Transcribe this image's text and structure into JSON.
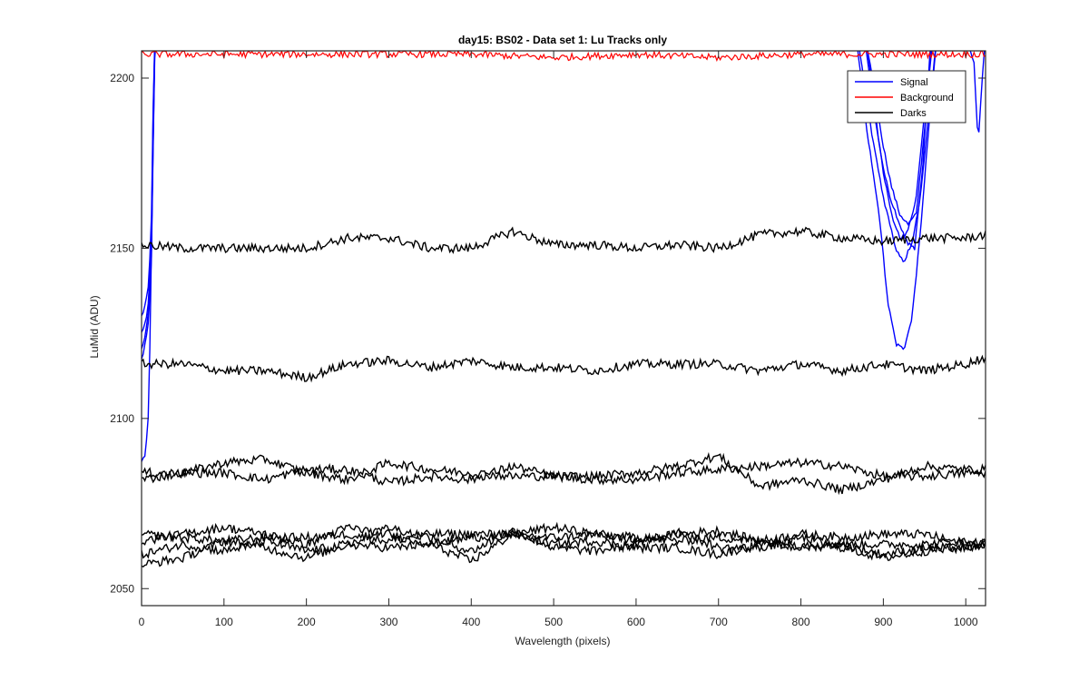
{
  "chart_data": {
    "type": "line",
    "title": "day15: BS02 - Data set 1: Lu Tracks only",
    "xlabel": "Wavelength (pixels)",
    "ylabel": "LuMid (ADU)",
    "xlim": [
      0,
      1024
    ],
    "ylim": [
      2045,
      2208
    ],
    "xticks": [
      0,
      100,
      200,
      300,
      400,
      500,
      600,
      700,
      800,
      900,
      1000
    ],
    "yticks": [
      2050,
      2100,
      2150,
      2200
    ],
    "grid": false,
    "legend": {
      "placement": "top-right",
      "entries": [
        "Signal",
        "Background",
        "Darks"
      ]
    },
    "colors": {
      "Signal": "#0000ff",
      "Background": "#ff0000",
      "Darks": "#000000"
    },
    "series": [
      {
        "name": "Signal",
        "note": "multiple overlapping traces; low near pixel 0, off-scale high from ~15 to ~870, dips between ~870 and ~960, off-scale again near 1000 with a dip at ~1015",
        "lines": [
          {
            "x": [
              0,
              3,
              6,
              9,
              12,
              14,
              16,
              18,
              880,
              890,
              900,
              910,
              920,
              930,
              940,
              950,
              960,
              1000,
              1010,
              1015,
              1020,
              1024
            ],
            "y": [
              2130,
              2132,
              2135,
              2140,
              2160,
              2190,
              2210,
              2212,
              2210,
              2195,
              2180,
              2168,
              2160,
              2157,
              2160,
              2185,
              2212,
              2212,
              2205,
              2180,
              2200,
              2212
            ]
          },
          {
            "x": [
              0,
              3,
              6,
              9,
              12,
              14,
              16,
              18,
              880,
              890,
              900,
              910,
              920,
              930,
              940,
              950,
              960,
              1024
            ],
            "y": [
              2125,
              2127,
              2130,
              2135,
              2155,
              2185,
              2210,
              2212,
              2210,
              2190,
              2172,
              2160,
              2153,
              2155,
              2165,
              2190,
              2212,
              2212
            ]
          },
          {
            "x": [
              0,
              3,
              6,
              9,
              12,
              14,
              16,
              18,
              878,
              888,
              898,
              908,
              918,
              928,
              938,
              948,
              958,
              1024
            ],
            "y": [
              2120,
              2123,
              2127,
              2132,
              2150,
              2180,
              2208,
              2212,
              2210,
              2192,
              2176,
              2165,
              2158,
              2152,
              2150,
              2175,
              2212,
              2212
            ]
          },
          {
            "x": [
              0,
              3,
              6,
              9,
              12,
              14,
              16,
              18,
              870,
              885,
              900,
              915,
              925,
              935,
              945,
              955,
              965,
              1024
            ],
            "y": [
              2118,
              2120,
              2124,
              2130,
              2148,
              2178,
              2206,
              2212,
              2210,
              2185,
              2165,
              2150,
              2146,
              2152,
              2165,
              2190,
              2212,
              2212
            ]
          },
          {
            "x": [
              0,
              2,
              5,
              8,
              11,
              13,
              15,
              17,
              868,
              880,
              895,
              905,
              915,
              925,
              935,
              945,
              955,
              965,
              1024
            ],
            "y": [
              2087,
              2088,
              2090,
              2100,
              2130,
              2170,
              2205,
              2212,
              2210,
              2185,
              2160,
              2135,
              2122,
              2120,
              2130,
              2155,
              2185,
              2212,
              2212
            ]
          }
        ]
      },
      {
        "name": "Background",
        "note": "noisy red trace hugging the top edge of the plot",
        "x": [
          0,
          100,
          200,
          300,
          400,
          500,
          600,
          700,
          800,
          900,
          1000,
          1024
        ],
        "y": [
          2207,
          2207,
          2207,
          2207,
          2207,
          2206,
          2207,
          2206,
          2207,
          2207,
          2207,
          2207
        ]
      },
      {
        "name": "Darks",
        "note": "noisy black traces; smooth baselines with ~±1.5 ADU noise",
        "lines": [
          {
            "x": [
              0,
              50,
              100,
              150,
              200,
              250,
              300,
              350,
              400,
              450,
              500,
              550,
              600,
              650,
              700,
              750,
              800,
              850,
              900,
              950,
              1000,
              1024
            ],
            "y": [
              2151,
              2150,
              2150,
              2150,
              2150,
              2153,
              2153,
              2150,
              2150,
              2155,
              2151,
              2151,
              2150,
              2151,
              2150,
              2154,
              2155,
              2153,
              2152,
              2153,
              2153,
              2154
            ]
          },
          {
            "x": [
              0,
              50,
              100,
              150,
              200,
              250,
              300,
              350,
              400,
              450,
              500,
              550,
              600,
              650,
              700,
              750,
              800,
              850,
              900,
              950,
              1000,
              1024
            ],
            "y": [
              2116,
              2116,
              2114,
              2114,
              2112,
              2116,
              2117,
              2115,
              2117,
              2115,
              2115,
              2114,
              2116,
              2116,
              2116,
              2114,
              2116,
              2114,
              2116,
              2114,
              2116,
              2118
            ]
          },
          {
            "x": [
              0,
              50,
              100,
              150,
              200,
              250,
              300,
              350,
              400,
              450,
              500,
              550,
              600,
              650,
              700,
              750,
              800,
              850,
              900,
              950,
              1000,
              1024
            ],
            "y": [
              2084,
              2084,
              2087,
              2088,
              2084,
              2082,
              2087,
              2085,
              2084,
              2083,
              2083,
              2082,
              2082,
              2084,
              2085,
              2086,
              2087,
              2086,
              2083,
              2083,
              2084,
              2084
            ]
          },
          {
            "x": [
              0,
              50,
              100,
              150,
              200,
              250,
              300,
              350,
              400,
              450,
              500,
              550,
              600,
              650,
              700,
              750,
              800,
              850,
              900,
              950,
              1000,
              1024
            ],
            "y": [
              2082,
              2084,
              2084,
              2082,
              2085,
              2085,
              2081,
              2083,
              2082,
              2086,
              2083,
              2083,
              2084,
              2086,
              2089,
              2080,
              2082,
              2079,
              2082,
              2086,
              2085,
              2085
            ]
          },
          {
            "x": [
              0,
              50,
              100,
              150,
              200,
              250,
              300,
              350,
              400,
              450,
              500,
              550,
              600,
              650,
              700,
              750,
              800,
              850,
              900,
              950,
              1000,
              1024
            ],
            "y": [
              2064,
              2066,
              2068,
              2066,
              2063,
              2068,
              2066,
              2063,
              2065,
              2066,
              2068,
              2066,
              2064,
              2066,
              2067,
              2064,
              2066,
              2065,
              2066,
              2066,
              2063,
              2064
            ]
          },
          {
            "x": [
              0,
              50,
              100,
              150,
              200,
              250,
              300,
              350,
              400,
              450,
              500,
              550,
              600,
              650,
              700,
              750,
              800,
              850,
              900,
              950,
              1000,
              1024
            ],
            "y": [
              2060,
              2063,
              2061,
              2064,
              2061,
              2063,
              2062,
              2063,
              2058,
              2066,
              2063,
              2064,
              2062,
              2062,
              2060,
              2063,
              2062,
              2063,
              2060,
              2062,
              2062,
              2063
            ]
          },
          {
            "x": [
              0,
              50,
              100,
              150,
              200,
              250,
              300,
              350,
              400,
              450,
              500,
              550,
              600,
              650,
              700,
              750,
              800,
              850,
              900,
              950,
              1000,
              1024
            ],
            "y": [
              2066,
              2065,
              2064,
              2065,
              2065,
              2066,
              2064,
              2066,
              2066,
              2066,
              2065,
              2066,
              2065,
              2064,
              2065,
              2064,
              2063,
              2063,
              2063,
              2063,
              2064,
              2063
            ]
          },
          {
            "x": [
              0,
              50,
              100,
              150,
              200,
              250,
              300,
              350,
              400,
              450,
              500,
              550,
              600,
              650,
              700,
              750,
              800,
              850,
              900,
              950,
              1000,
              1024
            ],
            "y": [
              2057,
              2059,
              2064,
              2062,
              2059,
              2063,
              2068,
              2065,
              2061,
              2067,
              2062,
              2061,
              2063,
              2067,
              2062,
              2062,
              2065,
              2062,
              2059,
              2061,
              2062,
              2063
            ]
          }
        ]
      }
    ]
  }
}
